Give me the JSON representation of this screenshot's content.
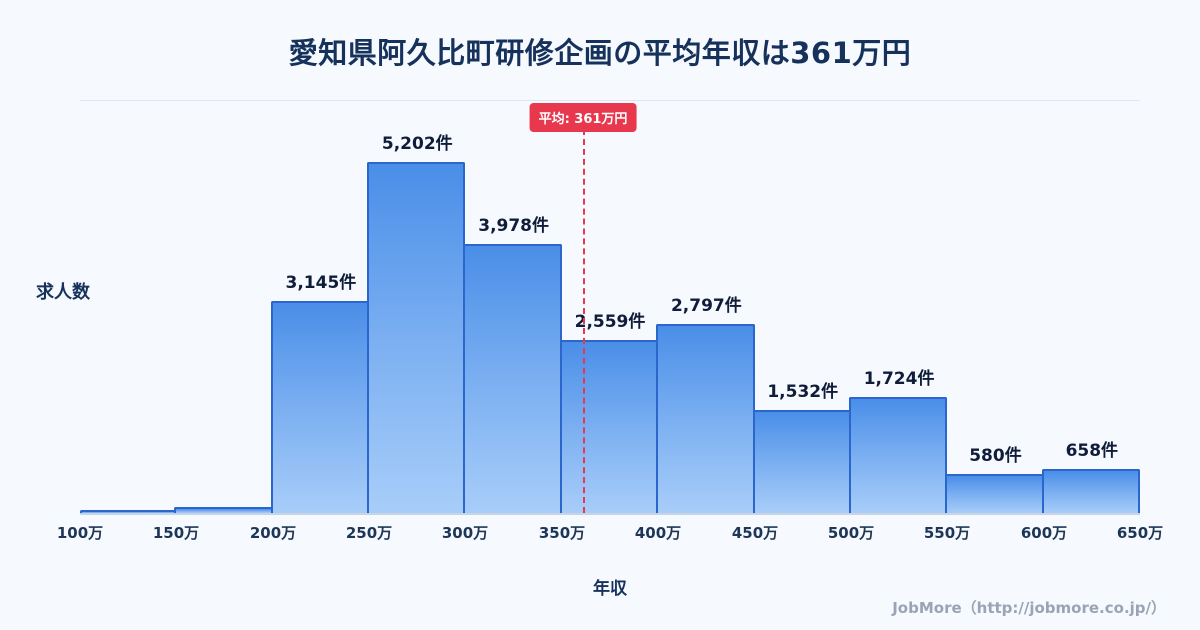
{
  "title": "愛知県阿久比町研修企画の平均年収は361万円",
  "footer": {
    "credit": "JobMore（http://jobmore.co.jp/）"
  },
  "chart_data": {
    "type": "bar",
    "title": "愛知県阿久比町研修企画の平均年収は361万円",
    "xlabel": "年収",
    "ylabel": "求人数",
    "x_tick_labels": [
      "100万",
      "150万",
      "200万",
      "250万",
      "300万",
      "350万",
      "400万",
      "450万",
      "500万",
      "550万",
      "600万",
      "650万"
    ],
    "xrange": [
      100,
      650
    ],
    "ylim": [
      0,
      6100
    ],
    "grid": "top-border-only",
    "bars": [
      {
        "range": "100万-150万",
        "value": 40,
        "label": ""
      },
      {
        "range": "150万-200万",
        "value": 90,
        "label": ""
      },
      {
        "range": "200万-250万",
        "value": 3145,
        "label": "3,145件"
      },
      {
        "range": "250万-300万",
        "value": 5202,
        "label": "5,202件"
      },
      {
        "range": "300万-350万",
        "value": 3978,
        "label": "3,978件"
      },
      {
        "range": "350万-400万",
        "value": 2559,
        "label": "2,559件"
      },
      {
        "range": "400万-450万",
        "value": 2797,
        "label": "2,797件"
      },
      {
        "range": "450万-500万",
        "value": 1532,
        "label": "1,532件"
      },
      {
        "range": "500万-550万",
        "value": 1724,
        "label": "1,724件"
      },
      {
        "range": "550万-600万",
        "value": 580,
        "label": "580件"
      },
      {
        "range": "600万-650万",
        "value": 658,
        "label": "658件"
      }
    ],
    "average": {
      "value": 361,
      "label": "平均: 361万円"
    },
    "colors": {
      "bar_top": "#4a8ee8",
      "bar_bottom": "#a8cdf9",
      "bar_border": "#2a66cc",
      "average_red": "#e8384d",
      "title_navy": "#16325c",
      "footer_gray": "#9aa4b5"
    }
  }
}
